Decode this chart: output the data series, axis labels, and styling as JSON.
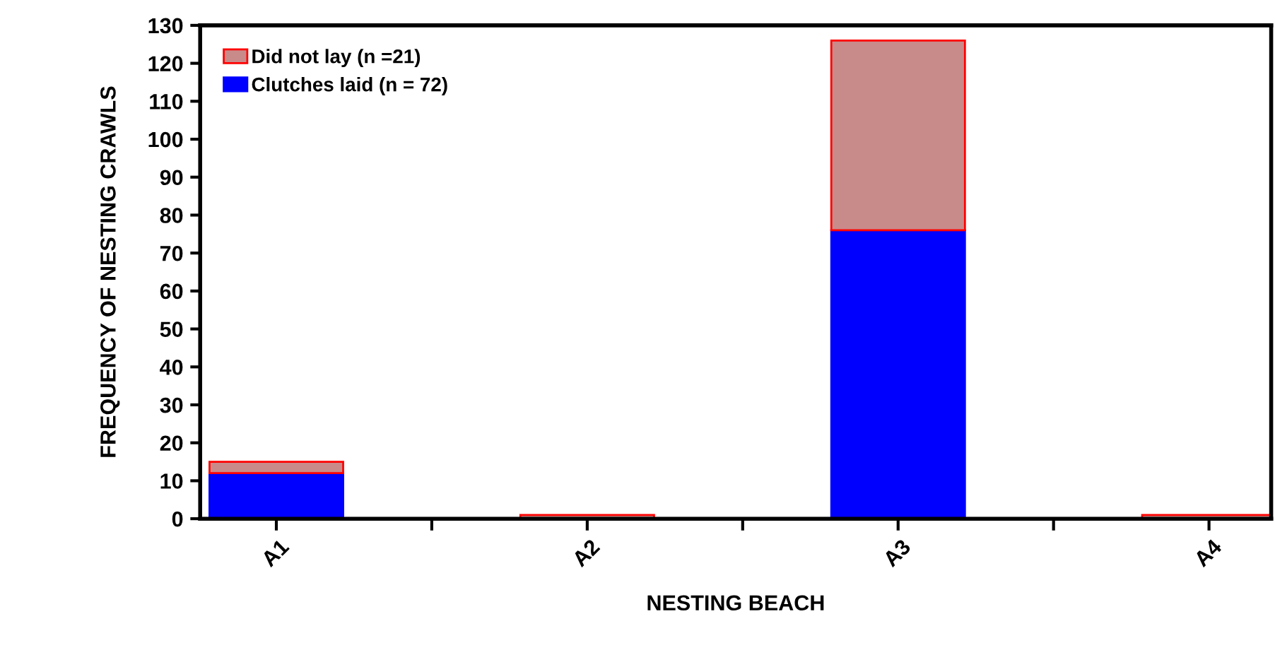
{
  "chart_data": {
    "type": "bar",
    "xlabel": "NESTING BEACH",
    "ylabel": "FREQUENCY OF NESTING CRAWLS",
    "categories": [
      "A1",
      "A2",
      "A3",
      "A4"
    ],
    "stacked": true,
    "series": [
      {
        "name": "Clutches laid (n = 72)",
        "color": "#0000ff",
        "values": [
          12,
          null,
          76,
          null
        ]
      },
      {
        "name": "Did not lay (n =21)",
        "color": "#ff0000",
        "values": [
          3,
          1,
          50,
          1
        ]
      }
    ],
    "ylim": [
      0,
      130
    ],
    "yticks": [
      0,
      10,
      20,
      30,
      40,
      50,
      60,
      70,
      80,
      90,
      100,
      110,
      120,
      130
    ],
    "grid": false,
    "legend": "top left"
  }
}
